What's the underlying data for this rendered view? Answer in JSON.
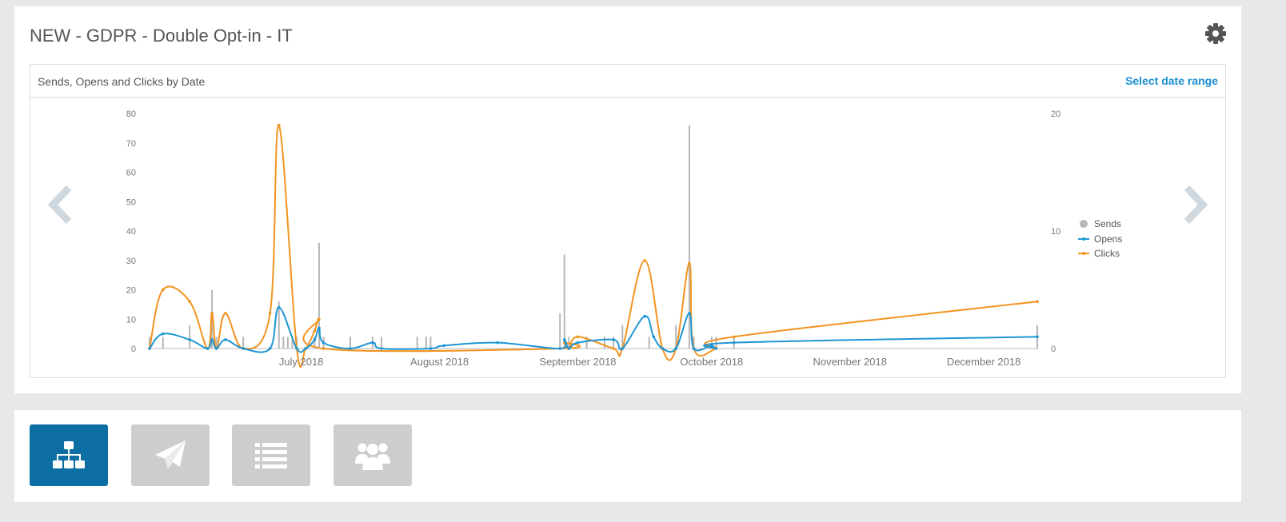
{
  "campaign": {
    "title": "NEW - GDPR - Double Opt-in - IT"
  },
  "chart_panel": {
    "title": "Sends, Opens and Clicks by Date",
    "date_range_link": "Select date range"
  },
  "chart_data": {
    "type": "line",
    "xlabels": [
      "July 2018",
      "August 2018",
      "September 2018",
      "October 2018",
      "November 2018",
      "December 2018"
    ],
    "left_axis": {
      "ticks": [
        "0",
        "10",
        "20",
        "30",
        "40",
        "50",
        "60",
        "70",
        "80"
      ],
      "ylim": [
        0,
        80
      ]
    },
    "right_axis": {
      "ticks": [
        "0",
        "10",
        "20"
      ],
      "ylim": [
        0,
        20
      ]
    },
    "legend": [
      {
        "name": "Sends",
        "color": "#b7b7b7"
      },
      {
        "name": "Opens",
        "color": "#1f96d3"
      },
      {
        "name": "Clicks",
        "color": "#f29420"
      }
    ],
    "sends": [
      {
        "date": "2018-06-12",
        "value": 1
      },
      {
        "date": "2018-06-15",
        "value": 1
      },
      {
        "date": "2018-06-21",
        "value": 2
      },
      {
        "date": "2018-06-26",
        "value": 5
      },
      {
        "date": "2018-06-27",
        "value": 1
      },
      {
        "date": "2018-07-03",
        "value": 1
      },
      {
        "date": "2018-07-11",
        "value": 4
      },
      {
        "date": "2018-07-12",
        "value": 1
      },
      {
        "date": "2018-07-13",
        "value": 1
      },
      {
        "date": "2018-07-14",
        "value": 1
      },
      {
        "date": "2018-07-15",
        "value": 1
      },
      {
        "date": "2018-07-19",
        "value": 1
      },
      {
        "date": "2018-07-20",
        "value": 9
      },
      {
        "date": "2018-07-21",
        "value": 1
      },
      {
        "date": "2018-07-27",
        "value": 1
      },
      {
        "date": "2018-08-01",
        "value": 1
      },
      {
        "date": "2018-08-03",
        "value": 1
      },
      {
        "date": "2018-08-11",
        "value": 1
      },
      {
        "date": "2018-08-13",
        "value": 1
      },
      {
        "date": "2018-08-14",
        "value": 1
      },
      {
        "date": "2018-09-12",
        "value": 3
      },
      {
        "date": "2018-09-13",
        "value": 8
      },
      {
        "date": "2018-09-14",
        "value": 1
      },
      {
        "date": "2018-09-18",
        "value": 1
      },
      {
        "date": "2018-09-22",
        "value": 1
      },
      {
        "date": "2018-09-24",
        "value": 1
      },
      {
        "date": "2018-09-26",
        "value": 2
      },
      {
        "date": "2018-10-02",
        "value": 1
      },
      {
        "date": "2018-10-08",
        "value": 2
      },
      {
        "date": "2018-10-11",
        "value": 19
      },
      {
        "date": "2018-10-12",
        "value": 1
      },
      {
        "date": "2018-10-16",
        "value": 1
      },
      {
        "date": "2018-10-17",
        "value": 1
      },
      {
        "date": "2018-10-21",
        "value": 1
      },
      {
        "date": "2018-12-28",
        "value": 2
      }
    ],
    "opens": [
      {
        "date": "2018-06-12",
        "value": 0
      },
      {
        "date": "2018-06-15",
        "value": 5
      },
      {
        "date": "2018-06-21",
        "value": 3
      },
      {
        "date": "2018-06-25",
        "value": 0
      },
      {
        "date": "2018-06-26",
        "value": 3
      },
      {
        "date": "2018-06-27",
        "value": 0
      },
      {
        "date": "2018-06-29",
        "value": 3
      },
      {
        "date": "2018-07-03",
        "value": 0
      },
      {
        "date": "2018-07-09",
        "value": 0
      },
      {
        "date": "2018-07-11",
        "value": 14
      },
      {
        "date": "2018-07-15",
        "value": 0
      },
      {
        "date": "2018-07-17",
        "value": 0
      },
      {
        "date": "2018-07-19",
        "value": 3
      },
      {
        "date": "2018-07-20",
        "value": 7
      },
      {
        "date": "2018-07-21",
        "value": 2
      },
      {
        "date": "2018-07-27",
        "value": 0
      },
      {
        "date": "2018-08-01",
        "value": 2
      },
      {
        "date": "2018-08-03",
        "value": 0
      },
      {
        "date": "2018-08-14",
        "value": 0
      },
      {
        "date": "2018-08-17",
        "value": 1
      },
      {
        "date": "2018-08-29",
        "value": 2
      },
      {
        "date": "2018-09-12",
        "value": 0
      },
      {
        "date": "2018-09-13",
        "value": 3
      },
      {
        "date": "2018-09-14",
        "value": 0
      },
      {
        "date": "2018-09-16",
        "value": 2
      },
      {
        "date": "2018-09-24",
        "value": 3
      },
      {
        "date": "2018-09-26",
        "value": 0
      },
      {
        "date": "2018-10-01",
        "value": 11
      },
      {
        "date": "2018-10-03",
        "value": 4
      },
      {
        "date": "2018-10-05",
        "value": 0
      },
      {
        "date": "2018-10-08",
        "value": 0
      },
      {
        "date": "2018-10-11",
        "value": 12
      },
      {
        "date": "2018-10-12",
        "value": 0
      },
      {
        "date": "2018-10-16",
        "value": 1
      },
      {
        "date": "2018-10-17",
        "value": 0
      },
      {
        "date": "2018-10-21",
        "value": 2
      },
      {
        "date": "2018-12-28",
        "value": 4
      }
    ],
    "clicks": [
      {
        "date": "2018-06-12",
        "value": 0
      },
      {
        "date": "2018-06-15",
        "value": 20
      },
      {
        "date": "2018-06-21",
        "value": 16
      },
      {
        "date": "2018-06-25",
        "value": 0
      },
      {
        "date": "2018-06-26",
        "value": 12
      },
      {
        "date": "2018-06-27",
        "value": 0
      },
      {
        "date": "2018-06-29",
        "value": 12
      },
      {
        "date": "2018-07-03",
        "value": 0
      },
      {
        "date": "2018-07-09",
        "value": 12
      },
      {
        "date": "2018-07-11",
        "value": 76
      },
      {
        "date": "2018-07-15",
        "value": 0
      },
      {
        "date": "2018-07-17",
        "value": 0
      },
      {
        "date": "2018-07-19",
        "value": 6
      },
      {
        "date": "2018-07-20",
        "value": 10
      },
      {
        "date": "2018-07-21",
        "value": 0
      },
      {
        "date": "2018-09-12",
        "value": 0
      },
      {
        "date": "2018-09-13",
        "value": 2
      },
      {
        "date": "2018-09-14",
        "value": 0
      },
      {
        "date": "2018-09-16",
        "value": 4
      },
      {
        "date": "2018-09-24",
        "value": 0
      },
      {
        "date": "2018-09-26",
        "value": 0
      },
      {
        "date": "2018-10-01",
        "value": 30
      },
      {
        "date": "2018-10-05",
        "value": 0
      },
      {
        "date": "2018-10-08",
        "value": 0
      },
      {
        "date": "2018-10-11",
        "value": 29
      },
      {
        "date": "2018-10-12",
        "value": 0
      },
      {
        "date": "2018-10-17",
        "value": 0
      },
      {
        "date": "2018-10-21",
        "value": 4
      },
      {
        "date": "2018-12-28",
        "value": 16
      }
    ]
  },
  "toolbar": {
    "buttons": [
      {
        "name": "workflow",
        "icon": "sitemap-icon",
        "active": true
      },
      {
        "name": "send",
        "icon": "paper-plane-icon",
        "active": false
      },
      {
        "name": "list",
        "icon": "list-icon",
        "active": false
      },
      {
        "name": "contacts",
        "icon": "users-icon",
        "active": false
      }
    ],
    "colors": {
      "active": "#0c6ea3",
      "inactive": "#cdcdcd"
    }
  }
}
